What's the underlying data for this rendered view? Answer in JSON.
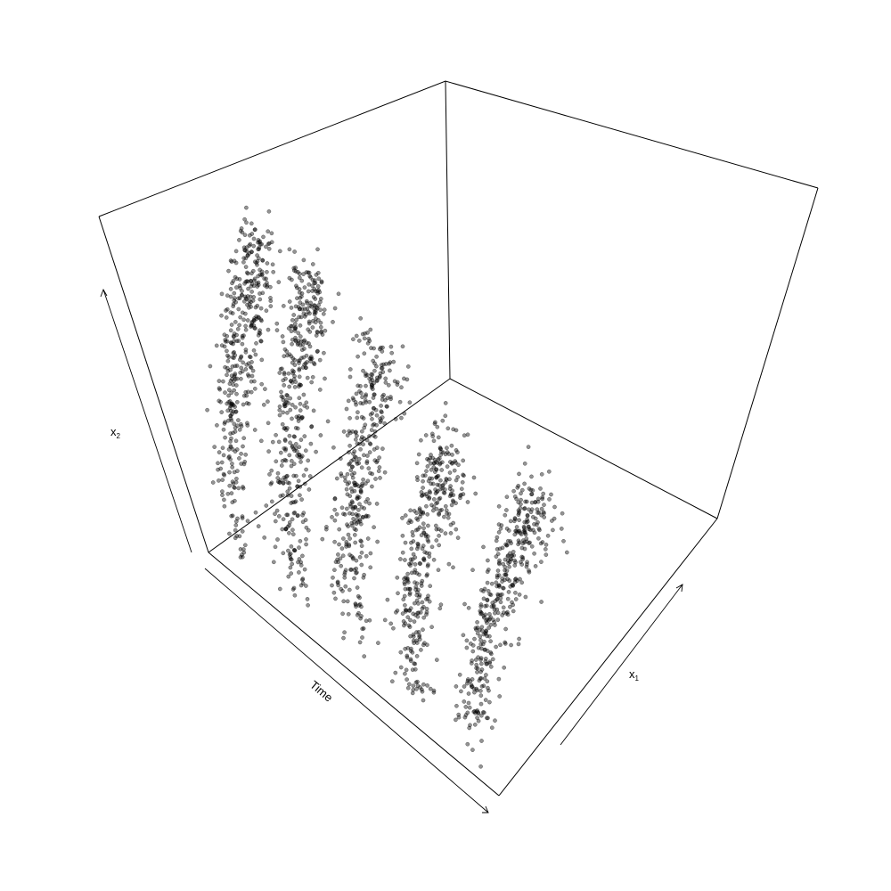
{
  "chart_data": {
    "type": "scatter",
    "projection": "3d",
    "title": "",
    "axes": {
      "time": {
        "label": "Time",
        "range": [
          0,
          5
        ]
      },
      "x1": {
        "label": "x",
        "label_sub": "1",
        "range": [
          0,
          1
        ]
      },
      "x2": {
        "label": "x",
        "label_sub": "2",
        "range": [
          0,
          1
        ]
      }
    },
    "grid": false,
    "legend": "none",
    "point_color": "#000000",
    "point_opacity": 0.42,
    "point_fill": "#000000",
    "series": [
      {
        "description_of_shape": "clusters at five time slices, each a rising arc from low x2 to a peak then descending",
        "clusters": [
          {
            "time": 0.5,
            "x1_range": [
              0.05,
              0.45
            ],
            "x2_peak": 0.78,
            "n": 420
          },
          {
            "time": 1.5,
            "x1_range": [
              0.05,
              0.45
            ],
            "x2_peak": 0.8,
            "n": 420
          },
          {
            "time": 2.5,
            "x1_range": [
              0.05,
              0.45
            ],
            "x2_peak": 0.72,
            "n": 380
          },
          {
            "time": 3.5,
            "x1_range": [
              0.05,
              0.45
            ],
            "x2_peak": 0.62,
            "n": 380
          },
          {
            "time": 4.5,
            "x1_range": [
              0.05,
              0.55
            ],
            "x2_peak": 0.55,
            "n": 420
          }
        ]
      }
    ]
  }
}
